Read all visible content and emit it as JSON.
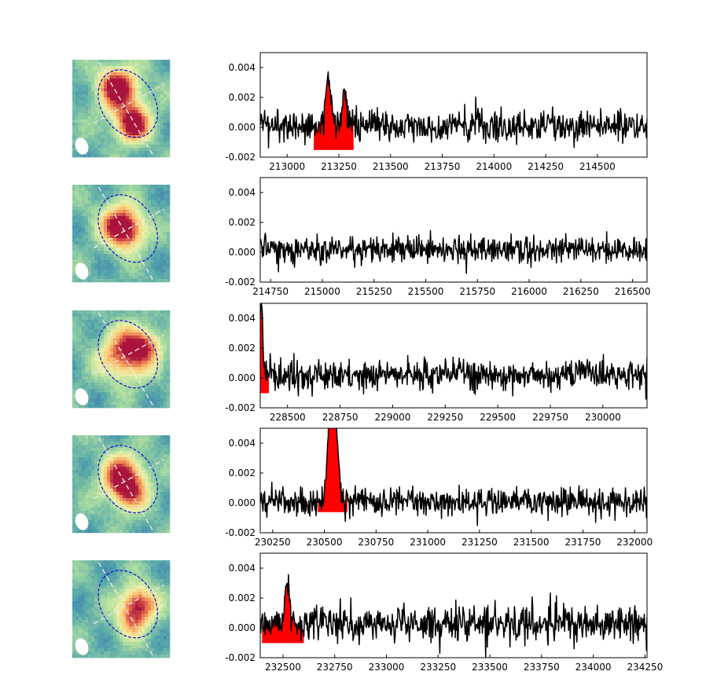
{
  "chart_data": [
    {
      "type": "line",
      "title": "",
      "xlabel": "",
      "ylabel": "",
      "xlim": [
        212870,
        214740
      ],
      "ylim": [
        -0.002,
        0.005
      ],
      "xticks": [
        213000,
        213250,
        213500,
        213750,
        214000,
        214250,
        214500
      ],
      "yticks": [
        -0.002,
        0.0,
        0.002,
        0.004
      ],
      "noise_std": 0.00055,
      "baseline": 0.0001,
      "lines": [
        {
          "center": 213200,
          "amplitude": 0.0032,
          "sigma": 12
        },
        {
          "center": 213280,
          "amplitude": 0.0025,
          "sigma": 10
        }
      ],
      "highlight": {
        "x_range": [
          213130,
          213320
        ],
        "color": "#ff0000",
        "floor": -0.0015
      },
      "grid": false,
      "series_color": "#000000",
      "map": {
        "peaks": [
          {
            "x": 0.45,
            "y": 0.25,
            "a": 0.9,
            "s": 0.14
          },
          {
            "x": 0.62,
            "y": 0.68,
            "a": 1.0,
            "s": 0.12
          },
          {
            "x": 0.55,
            "y": 0.45,
            "a": 0.5,
            "s": 0.18
          }
        ]
      }
    },
    {
      "type": "line",
      "title": "",
      "xlabel": "",
      "ylabel": "",
      "xlim": [
        214700,
        216570
      ],
      "ylim": [
        -0.002,
        0.005
      ],
      "xticks": [
        214750,
        215000,
        215250,
        215500,
        215750,
        216000,
        216250,
        216500
      ],
      "yticks": [
        -0.002,
        0.0,
        0.002,
        0.004
      ],
      "noise_std": 0.00045,
      "baseline": 0.0002,
      "lines": [],
      "highlight": null,
      "grid": false,
      "series_color": "#000000",
      "map": {
        "peaks": [
          {
            "x": 0.55,
            "y": 0.48,
            "a": 1.0,
            "s": 0.14
          },
          {
            "x": 0.45,
            "y": 0.35,
            "a": 0.5,
            "s": 0.15
          }
        ]
      }
    },
    {
      "type": "line",
      "title": "",
      "xlabel": "",
      "ylabel": "",
      "xlim": [
        228370,
        230210
      ],
      "ylim": [
        -0.002,
        0.005
      ],
      "xticks": [
        228500,
        228750,
        229000,
        229250,
        229500,
        229750,
        230000
      ],
      "yticks": [
        -0.002,
        0.0,
        0.002,
        0.004
      ],
      "noise_std": 0.0005,
      "baseline": 0.0002,
      "lines": [
        {
          "center": 228375,
          "amplitude": 0.0047,
          "sigma": 6
        }
      ],
      "highlight": {
        "x_range": [
          228370,
          228410
        ],
        "color": "#ff0000",
        "floor": -0.001
      },
      "grid": false,
      "series_color": "#000000",
      "map": {
        "peaks": [
          {
            "x": 0.55,
            "y": 0.45,
            "a": 1.0,
            "s": 0.18
          },
          {
            "x": 0.75,
            "y": 0.35,
            "a": 0.6,
            "s": 0.12
          }
        ]
      }
    },
    {
      "type": "line",
      "title": "",
      "xlabel": "",
      "ylabel": "",
      "xlim": [
        230190,
        232060
      ],
      "ylim": [
        -0.002,
        0.005
      ],
      "xticks": [
        230250,
        230500,
        230750,
        231000,
        231250,
        231500,
        231750,
        232000
      ],
      "yticks": [
        -0.002,
        0.0,
        0.002,
        0.004
      ],
      "noise_std": 0.0005,
      "baseline": 0.0001,
      "lines": [
        {
          "center": 230540,
          "amplitude": 0.0085,
          "sigma": 18
        }
      ],
      "highlight": {
        "x_range": [
          230470,
          230610
        ],
        "color": "#ff0000",
        "floor": -0.0006
      },
      "grid": false,
      "series_color": "#000000",
      "map": {
        "peaks": [
          {
            "x": 0.52,
            "y": 0.42,
            "a": 1.0,
            "s": 0.16
          },
          {
            "x": 0.58,
            "y": 0.62,
            "a": 0.6,
            "s": 0.13
          }
        ]
      }
    },
    {
      "type": "line",
      "title": "",
      "xlabel": "",
      "ylabel": "",
      "xlim": [
        232390,
        234260
      ],
      "ylim": [
        -0.002,
        0.005
      ],
      "xticks": [
        232500,
        232750,
        233000,
        233250,
        233500,
        233750,
        234000,
        234250
      ],
      "yticks": [
        -0.002,
        0.0,
        0.002,
        0.004
      ],
      "noise_std": 0.0006,
      "baseline": 0.0003,
      "lines": [
        {
          "center": 232520,
          "amplitude": 0.0026,
          "sigma": 12
        }
      ],
      "highlight": {
        "x_range": [
          232400,
          232600
        ],
        "color": "#ff0000",
        "floor": -0.001
      },
      "grid": false,
      "series_color": "#000000",
      "map": {
        "peaks": [
          {
            "x": 0.68,
            "y": 0.45,
            "a": 1.0,
            "s": 0.13
          },
          {
            "x": 0.6,
            "y": 0.65,
            "a": 0.5,
            "s": 0.12
          }
        ]
      }
    }
  ]
}
